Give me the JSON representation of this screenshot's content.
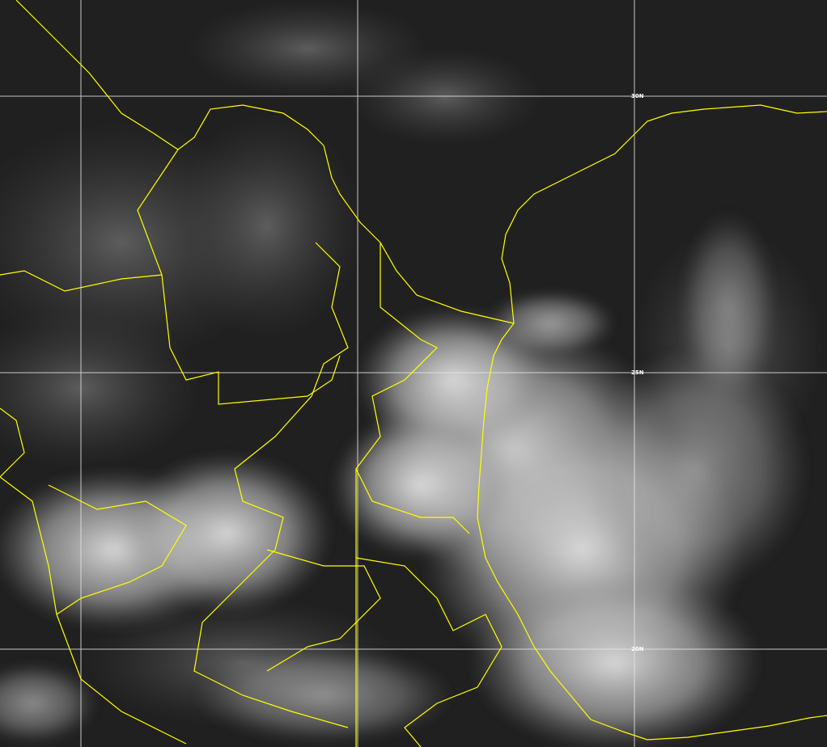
{
  "map": {
    "type": "visible satellite imagery",
    "colors": {
      "background": "#1c1c1c",
      "borders": "#ffff00",
      "grid": "#e6e6e6",
      "clouds": "#d8d8d8"
    },
    "latitude_labels": [
      {
        "text": "30N",
        "lat": 30
      },
      {
        "text": "25N",
        "lat": 25
      },
      {
        "text": "20N",
        "lat": 20
      }
    ]
  }
}
